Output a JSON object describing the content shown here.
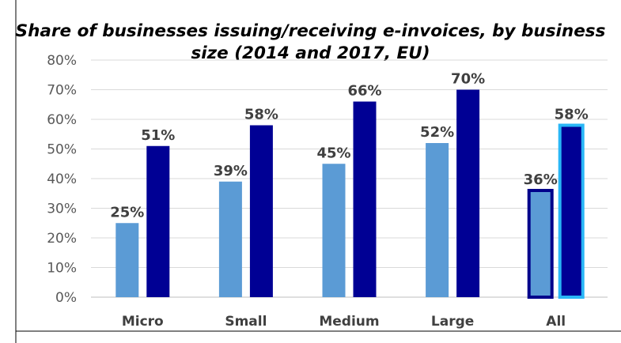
{
  "chart_data": {
    "type": "bar",
    "title": "Share of businesses issuing/receiving e-invoices, by business size (2014 and 2017, EU)",
    "categories": [
      "Micro",
      "Small",
      "Medium",
      "Large",
      "All"
    ],
    "series": [
      {
        "values": [
          25,
          39,
          45,
          52,
          36
        ],
        "labels": [
          "25%",
          "39%",
          "45%",
          "52%",
          "36%"
        ],
        "color": "#5b9bd5"
      },
      {
        "values": [
          51,
          58,
          66,
          70,
          58
        ],
        "labels": [
          "51%",
          "58%",
          "66%",
          "70%",
          "58%"
        ],
        "color": "#000094"
      }
    ],
    "highlight_category": "All",
    "highlight_colors": [
      "#00008b",
      "#29b6f6"
    ],
    "ylim": [
      0,
      80
    ],
    "yticks": [
      0,
      10,
      20,
      30,
      40,
      50,
      60,
      70,
      80
    ],
    "ytick_labels": [
      "0%",
      "10%",
      "20%",
      "30%",
      "40%",
      "50%",
      "60%",
      "70%",
      "80%"
    ],
    "grid": true,
    "gridline_color": "#d9d9d9"
  }
}
